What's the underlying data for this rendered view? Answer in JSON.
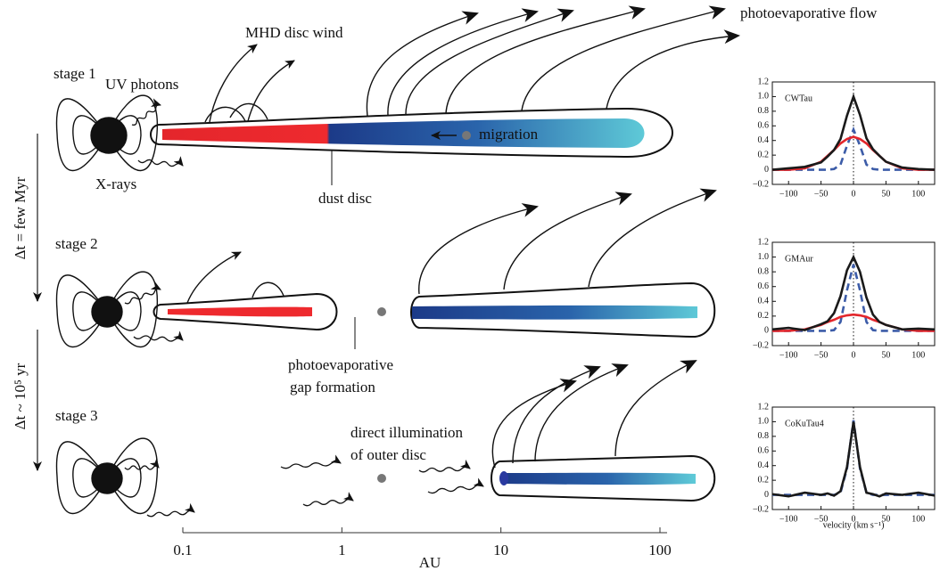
{
  "figure": {
    "flow_label": "photoevaporative flow",
    "wind_label": "MHD disc wind",
    "stage1": "stage 1",
    "uv_label": "UV photons",
    "migration_label": "migration",
    "xray_label": "X-rays",
    "dust_label": "dust disc",
    "dt1": "Δt = few Myr",
    "stage2": "stage 2",
    "gap_label": [
      "photoevaporative",
      "gap formation"
    ],
    "dt2": "Δt ~ 10⁵ yr",
    "stage3": "stage 3",
    "illum_label": [
      "direct illumination",
      "of outer disc"
    ]
  },
  "au_axis": {
    "label": "AU",
    "lim": [
      0.1,
      100
    ],
    "ticks": [
      0.1,
      1,
      10,
      100
    ],
    "log": true
  },
  "velocity_label": "velocity (km s⁻¹)",
  "panels": [
    {
      "label": "CWTau",
      "xlim": [
        -125,
        125
      ],
      "ylim": [
        -0.2,
        1.2
      ],
      "xticks": [
        {
          "value": -100,
          "label": "−100"
        },
        {
          "value": -50,
          "label": "−50"
        },
        0,
        50,
        100
      ],
      "yticks": [
        {
          "value": -0.2,
          "label": "−0.2"
        },
        0,
        0.2,
        0.4,
        0.6,
        0.8,
        {
          "value": 1.0,
          "label": "1.0"
        },
        1.2
      ],
      "x": [
        -125,
        -100,
        -75,
        -50,
        -40,
        -30,
        -20,
        -10,
        0,
        10,
        20,
        30,
        40,
        50,
        75,
        100,
        125
      ],
      "series": [
        {
          "color": "#1a1a1a",
          "dash": false,
          "values": [
            0.0,
            0.02,
            0.04,
            0.1,
            0.18,
            0.27,
            0.42,
            0.74,
            1.0,
            0.75,
            0.43,
            0.28,
            0.19,
            0.11,
            0.03,
            0.01,
            0.0
          ]
        },
        {
          "color": "#e3262b",
          "dash": false,
          "values": [
            0.0,
            0.0,
            0.02,
            0.11,
            0.19,
            0.27,
            0.36,
            0.42,
            0.45,
            0.42,
            0.36,
            0.27,
            0.19,
            0.11,
            0.02,
            0.0,
            0.0
          ]
        },
        {
          "color": "#3c5ca8",
          "dash": true,
          "values": [
            0.0,
            0.0,
            0.0,
            0.0,
            0.0,
            0.01,
            0.07,
            0.33,
            0.55,
            0.33,
            0.07,
            0.01,
            0.0,
            0.0,
            0.0,
            0.0,
            0.0
          ]
        }
      ]
    },
    {
      "label": "GMAur",
      "xlim": [
        -125,
        125
      ],
      "ylim": [
        -0.2,
        1.2
      ],
      "xticks": [
        {
          "value": -100,
          "label": "−100"
        },
        {
          "value": -50,
          "label": "−50"
        },
        0,
        50,
        100
      ],
      "yticks": [
        {
          "value": -0.2,
          "label": "−0.2"
        },
        0,
        0.2,
        0.4,
        0.6,
        0.8,
        {
          "value": 1.0,
          "label": "1.0"
        },
        1.2
      ],
      "x": [
        -125,
        -100,
        -75,
        -50,
        -40,
        -30,
        -20,
        -10,
        0,
        10,
        20,
        30,
        40,
        50,
        75,
        100,
        125
      ],
      "series": [
        {
          "color": "#1a1a1a",
          "dash": false,
          "values": [
            0.02,
            0.04,
            0.01,
            0.09,
            0.13,
            0.24,
            0.47,
            0.82,
            1.0,
            0.8,
            0.45,
            0.22,
            0.12,
            0.08,
            0.02,
            0.03,
            0.02
          ]
        },
        {
          "color": "#e3262b",
          "dash": false,
          "values": [
            0.0,
            0.0,
            0.02,
            0.08,
            0.12,
            0.15,
            0.19,
            0.21,
            0.22,
            0.21,
            0.19,
            0.15,
            0.12,
            0.08,
            0.02,
            0.0,
            0.0
          ]
        },
        {
          "color": "#3c5ca8",
          "dash": true,
          "values": [
            0.0,
            0.0,
            0.0,
            0.0,
            0.0,
            0.01,
            0.12,
            0.55,
            0.9,
            0.55,
            0.12,
            0.01,
            0.0,
            0.0,
            0.0,
            0.0,
            0.0
          ]
        }
      ]
    },
    {
      "label": "CoKuTau4",
      "xlim": [
        -125,
        125
      ],
      "ylim": [
        -0.2,
        1.2
      ],
      "xticks": [
        {
          "value": -100,
          "label": "−100"
        },
        {
          "value": -50,
          "label": "−50"
        },
        0,
        50,
        100
      ],
      "yticks": [
        {
          "value": -0.2,
          "label": "−0.2"
        },
        0,
        0.2,
        0.4,
        0.6,
        0.8,
        {
          "value": 1.0,
          "label": "1.0"
        },
        1.2
      ],
      "x": [
        -125,
        -100,
        -75,
        -50,
        -40,
        -30,
        -20,
        -10,
        0,
        10,
        20,
        30,
        40,
        50,
        75,
        100,
        125
      ],
      "series": [
        {
          "color": "#1a1a1a",
          "dash": false,
          "values": [
            0.01,
            -0.02,
            0.03,
            0.0,
            0.02,
            -0.01,
            0.05,
            0.38,
            1.0,
            0.38,
            0.03,
            0.01,
            -0.02,
            0.02,
            0.0,
            0.03,
            -0.01
          ]
        },
        {
          "color": "#3c5ca8",
          "dash": true,
          "values": [
            0.0,
            0.0,
            0.0,
            0.0,
            0.0,
            0.0,
            0.03,
            0.36,
            1.02,
            0.36,
            0.03,
            0.0,
            0.0,
            0.0,
            0.0,
            0.0,
            0.0
          ]
        }
      ]
    }
  ]
}
